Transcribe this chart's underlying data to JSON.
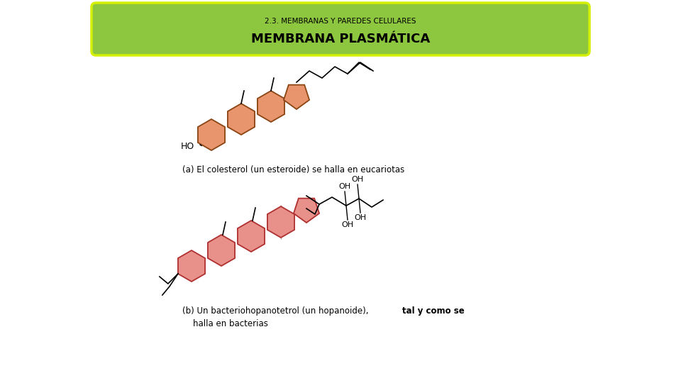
{
  "title_subtitle": "2.3. MEMBRANAS Y PAREDES CELULARES",
  "title_main": "MEMBRANA PLASMÁTICA",
  "header_bg": "#8dc63f",
  "header_border": "#d4f000",
  "bg_color": "#ffffff",
  "cholesterol_color": "#e8956d",
  "cholesterol_edge": "#8b4513",
  "hopanoid_color": "#e8908a",
  "hopanoid_edge": "#b03030",
  "label_a": "(a) El colesterol (un esteroide) se halla en eucariotas",
  "label_b_1": "(b) Un bacteriohopanotetrol (un hopanoide),",
  "label_b_bold": "tal y como se",
  "label_b_2": "     halla en bacterias"
}
